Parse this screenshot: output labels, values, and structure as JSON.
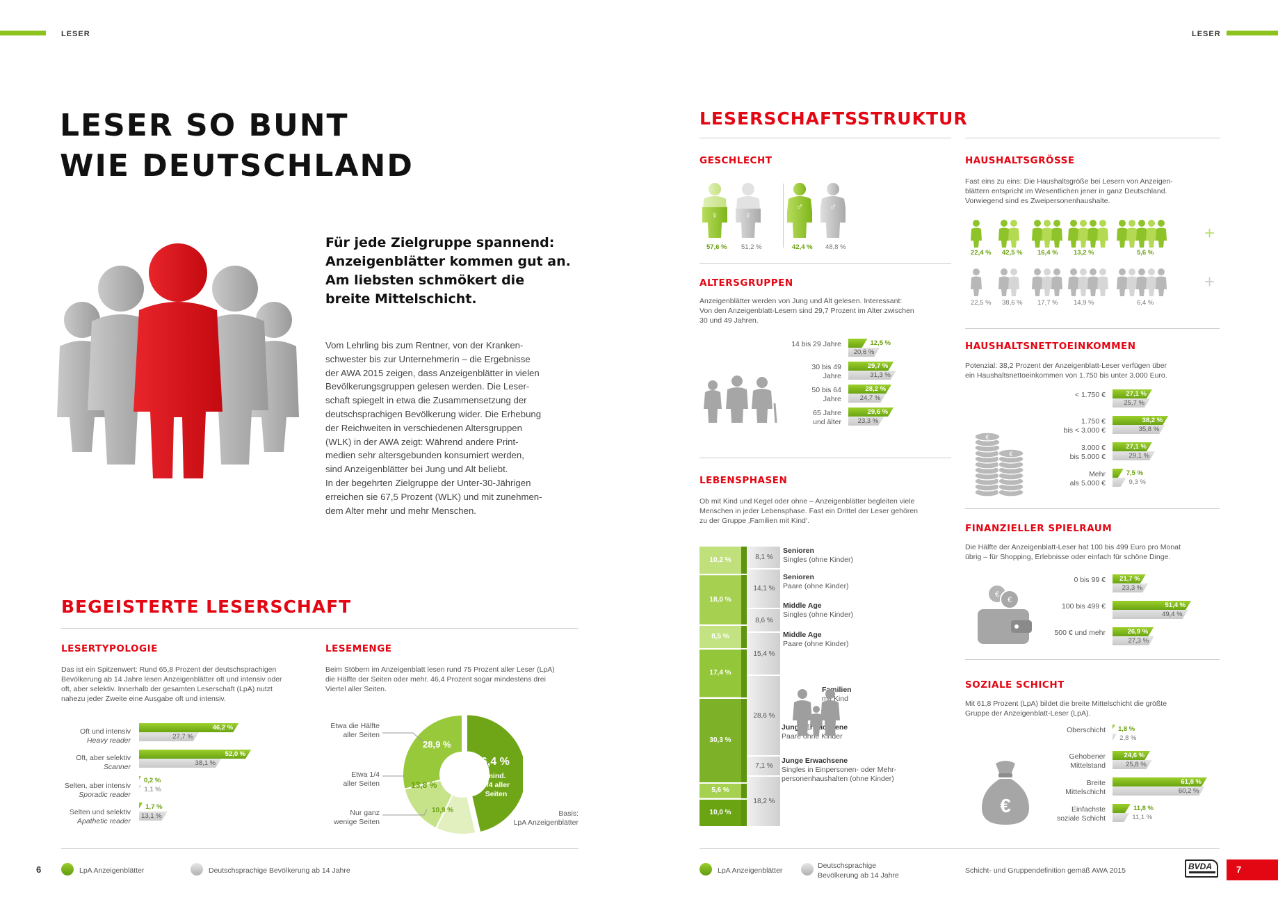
{
  "running_head_left": "LESER",
  "running_head_right": "LESER",
  "main_title": [
    "LESER SO BUNT",
    "WIE DEUTSCHLAND"
  ],
  "lead": [
    "Für jede Zielgruppe spannend:",
    "Anzeigenblätter kommen gut an.",
    "Am liebsten schmökert die",
    "breite Mittelschicht."
  ],
  "body_text": [
    "Vom Lehrling bis zum Rentner, von der Kranken-",
    "schwester bis zur Unternehmerin – die Ergebnisse",
    "der AWA 2015 zeigen, dass Anzeigenblätter in vielen",
    "Bevölkerungsgruppen gelesen werden. Die Leser-",
    "schaft spiegelt in etwa die Zusammensetzung der",
    "deutschsprachigen Bevölkerung wider. Die Erhebung",
    "der Reichweiten in verschiedenen Altersgruppen",
    "(WLK) in der AWA zeigt: Während andere Print-",
    "medien sehr altersgebunden konsumiert werden,",
    "sind Anzeigenblätter bei Jung und Alt beliebt.",
    "In der begehrten Zielgruppe der Unter-30-Jährigen",
    "erreichen sie 67,5 Prozent (WLK) und mit zunehmen-",
    "dem Alter mehr und mehr Menschen."
  ],
  "section_begeistert": "BEGEISTERTE LESERSCHAFT",
  "lesertypologie": {
    "title": "LESERTYPOLOGIE",
    "text": [
      "Das ist ein Spitzenwert: Rund 65,8 Prozent der deutschsprachigen",
      "Bevölkerung ab 14 Jahre lesen Anzeigenblätter oft und intensiv oder",
      "oft, aber selektiv. Innerhalb der gesamten Leserschaft (LpA) nutzt",
      "nahezu jeder Zweite eine Ausgabe oft und intensiv."
    ],
    "rows": [
      {
        "label": "Oft und intensiv",
        "sub": "Heavy reader",
        "g": "46,2 %",
        "gv": 46.2,
        "x": "27,7 %",
        "xv": 27.7
      },
      {
        "label": "Oft, aber selektiv",
        "sub": "Scanner",
        "g": "52,0 %",
        "gv": 52.0,
        "x": "38,1 %",
        "xv": 38.1
      },
      {
        "label": "Selten, aber intensiv",
        "sub": "Sporadic reader",
        "g": "0,2 %",
        "gv": 0.2,
        "x": "1,1 %",
        "xv": 1.1
      },
      {
        "label": "Selten und selektiv",
        "sub": "Apathetic reader",
        "g": "1,7 %",
        "gv": 1.7,
        "x": "13,1 %",
        "xv": 13.1
      }
    ]
  },
  "lesemenge": {
    "title": "LESEMENGE",
    "text": [
      "Beim Stöbern im Anzeigenblatt lesen rund 75 Prozent aller Leser (LpA)",
      "die Hälfte der Seiten oder mehr. 46,4 Prozent sogar mindestens drei",
      "Viertel aller Seiten."
    ],
    "slices": [
      {
        "label": "mind. 3/4 aller Seiten",
        "value": "46,4 %",
        "v": 46.4
      },
      {
        "label": "Nur ganz wenige Seiten",
        "value": "10,9 %",
        "v": 10.9
      },
      {
        "label": "Etwa 1/4 aller Seiten",
        "value": "13,8 %",
        "v": 13.8
      },
      {
        "label": "Etwa die Hälfte aller Seiten",
        "value": "28,9 %",
        "v": 28.9
      }
    ],
    "inner_label": [
      "mind.",
      "3/4 aller",
      "Seiten"
    ],
    "label_half": [
      "Etwa die Hälfte",
      "aller Seiten"
    ],
    "label_quarter": [
      "Etwa 1/4",
      "aller Seiten"
    ],
    "label_few": [
      "Nur ganz",
      "wenige Seiten"
    ],
    "basis": [
      "Basis:",
      "LpA Anzeigenblätter"
    ]
  },
  "page_left": "6",
  "page_right": "7",
  "legend_lpa": "LpA Anzeigenblätter",
  "legend_pop_left": "Deutschsprachige Bevölkerung ab 14 Jahre",
  "legend_pop_right": [
    "Deutschsprachige",
    "Bevölkerung ab 14 Jahre"
  ],
  "section_struktur": "LESERSCHAFTSSTRUKTUR",
  "geschlecht": {
    "title": "GESCHLECHT",
    "f_g": "57,6 %",
    "f_x": "51,2 %",
    "m_g": "42,4 %",
    "m_x": "48,8 %"
  },
  "altersgruppen": {
    "title": "ALTERSGRUPPEN",
    "text": [
      "Anzeigenblätter werden von Jung und Alt gelesen. Interessant:",
      "Von den Anzeigenblatt-Lesern sind 29,7 Prozent im Alter zwischen",
      "30 und 49 Jahren."
    ],
    "rows": [
      {
        "label": [
          "14 bis 29 Jahre"
        ],
        "g": "12,5 %",
        "gv": 12.5,
        "x": "20,6 %",
        "xv": 20.6
      },
      {
        "label": [
          "30 bis 49",
          "Jahre"
        ],
        "g": "29,7 %",
        "gv": 29.7,
        "x": "31,3 %",
        "xv": 31.3
      },
      {
        "label": [
          "50 bis 64",
          "Jahre"
        ],
        "g": "28,2 %",
        "gv": 28.2,
        "x": "24,7 %",
        "xv": 24.7
      },
      {
        "label": [
          "65 Jahre",
          "und älter"
        ],
        "g": "29,6 %",
        "gv": 29.6,
        "x": "23,3 %",
        "xv": 23.3
      }
    ]
  },
  "lebensphasen": {
    "title": "LEBENSPHASEN",
    "text": [
      "Ob mit Kind und Kegel oder ohne – Anzeigenblätter begleiten viele",
      "Menschen in jeder Lebensphase. Fast ein Drittel der Leser gehören",
      "zu der Gruppe ‚Familien mit Kind‘."
    ],
    "segments": [
      {
        "g": "10,2 %",
        "gv": 10.2,
        "x": "8,1 %",
        "xv": 8.1,
        "title": "Senioren",
        "sub": "Singles (ohne Kinder)"
      },
      {
        "g": "18,0 %",
        "gv": 18.0,
        "x": "14,1 %",
        "xv": 14.1,
        "title": "Senioren",
        "sub": "Paare (ohne Kinder)"
      },
      {
        "g": "8,5 %",
        "gv": 8.5,
        "x": "8,6 %",
        "xv": 8.6,
        "title": "Middle Age",
        "sub": "Singles (ohne Kinder)"
      },
      {
        "g": "17,4 %",
        "gv": 17.4,
        "x": "15,4 %",
        "xv": 15.4,
        "title": "Middle Age",
        "sub": "Paare (ohne Kinder)"
      },
      {
        "g": "30,3 %",
        "gv": 30.3,
        "x": "28,6 %",
        "xv": 28.6,
        "title": "Familien",
        "sub": "mit Kind"
      },
      {
        "g": "5,6 %",
        "gv": 5.6,
        "x": "7,1 %",
        "xv": 7.1,
        "title": "Junge Erwachsene",
        "sub": "Paare ohne Kinder"
      },
      {
        "g": "10,0 %",
        "gv": 10.0,
        "x": "18,2 %",
        "xv": 18.2,
        "title": "Junge Erwachsene",
        "sub": "Singles in Einpersonen- oder Mehr-",
        "sub2": "personenhaushalten (ohne Kinder)"
      }
    ]
  },
  "haushaltsgroesse": {
    "title": "HAUSHALTSGRÖSSE",
    "text": [
      "Fast eins zu eins: Die Haushaltsgröße bei Lesern von Anzeigen-",
      "blättern entspricht im Wesentlichen jener in ganz Deutschland.",
      "Vorwiegend sind es Zweipersonenhaushalte."
    ],
    "g": [
      "22,4 %",
      "42,5 %",
      "16,4 %",
      "13,2 %",
      "5,6 %"
    ],
    "x": [
      "22,5 %",
      "38,6 %",
      "17,7 %",
      "14,9 %",
      "6,4 %"
    ],
    "plus": "+"
  },
  "einkommen": {
    "title": "HAUSHALTSNETTOEINKOMMEN",
    "text": [
      "Potenzial: 38,2 Prozent der Anzeigenblatt-Leser verfügen über",
      "ein Haushaltsnettoeinkommen von 1.750 bis unter 3.000 Euro."
    ],
    "rows": [
      {
        "label": [
          "< 1.750 €"
        ],
        "g": "27,1 %",
        "gv": 27.1,
        "x": "25,7 %",
        "xv": 25.7
      },
      {
        "label": [
          "1.750 €",
          "bis < 3.000 €"
        ],
        "g": "38,2 %",
        "gv": 38.2,
        "x": "35,8 %",
        "xv": 35.8
      },
      {
        "label": [
          "3.000 €",
          "bis 5.000 €"
        ],
        "g": "27,1 %",
        "gv": 27.1,
        "x": "29,1 %",
        "xv": 29.1
      },
      {
        "label": [
          "Mehr",
          "als 5.000 €"
        ],
        "g": "7,5 %",
        "gv": 7.5,
        "x": "9,3 %",
        "xv": 9.3
      }
    ]
  },
  "spielraum": {
    "title": "FINANZIELLER SPIELRAUM",
    "text": [
      "Die Hälfte der Anzeigenblatt-Leser hat 100 bis 499 Euro pro Monat",
      "übrig – für Shopping, Erlebnisse oder einfach für schöne Dinge."
    ],
    "rows": [
      {
        "label": [
          "0 bis 99 €"
        ],
        "g": "21,7 %",
        "gv": 21.7,
        "x": "23,3 %",
        "xv": 23.3
      },
      {
        "label": [
          "100 bis 499 €"
        ],
        "g": "51,4 %",
        "gv": 51.4,
        "x": "49,4 %",
        "xv": 49.4
      },
      {
        "label": [
          "500 € und mehr"
        ],
        "g": "26,9 %",
        "gv": 26.9,
        "x": "27,3 %",
        "xv": 27.3
      }
    ]
  },
  "schicht": {
    "title": "SOZIALE SCHICHT",
    "text": [
      "Mit 61,8 Prozent (LpA) bildet die breite Mittelschicht die größte",
      "Gruppe der Anzeigenblatt-Leser (LpA)."
    ],
    "rows": [
      {
        "label": [
          "Oberschicht"
        ],
        "g": "1,8 %",
        "gv": 1.8,
        "x": "2,8 %",
        "xv": 2.8
      },
      {
        "label": [
          "Gehobener",
          "Mittelstand"
        ],
        "g": "24,6 %",
        "gv": 24.6,
        "x": "25,8 %",
        "xv": 25.8
      },
      {
        "label": [
          "Breite",
          "Mittelschicht"
        ],
        "g": "61,8 %",
        "gv": 61.8,
        "x": "60,2 %",
        "xv": 60.2
      },
      {
        "label": [
          "Einfachste",
          "soziale Schicht"
        ],
        "g": "11,8 %",
        "gv": 11.8,
        "x": "11,1 %",
        "xv": 11.1
      }
    ]
  },
  "footnote": "Schicht- und Gruppendefinition gemäß AWA 2015",
  "logo": "BVDA",
  "colors": {
    "green": "#8dc21f",
    "red": "#e30613",
    "gray": "#bdbdbd"
  }
}
